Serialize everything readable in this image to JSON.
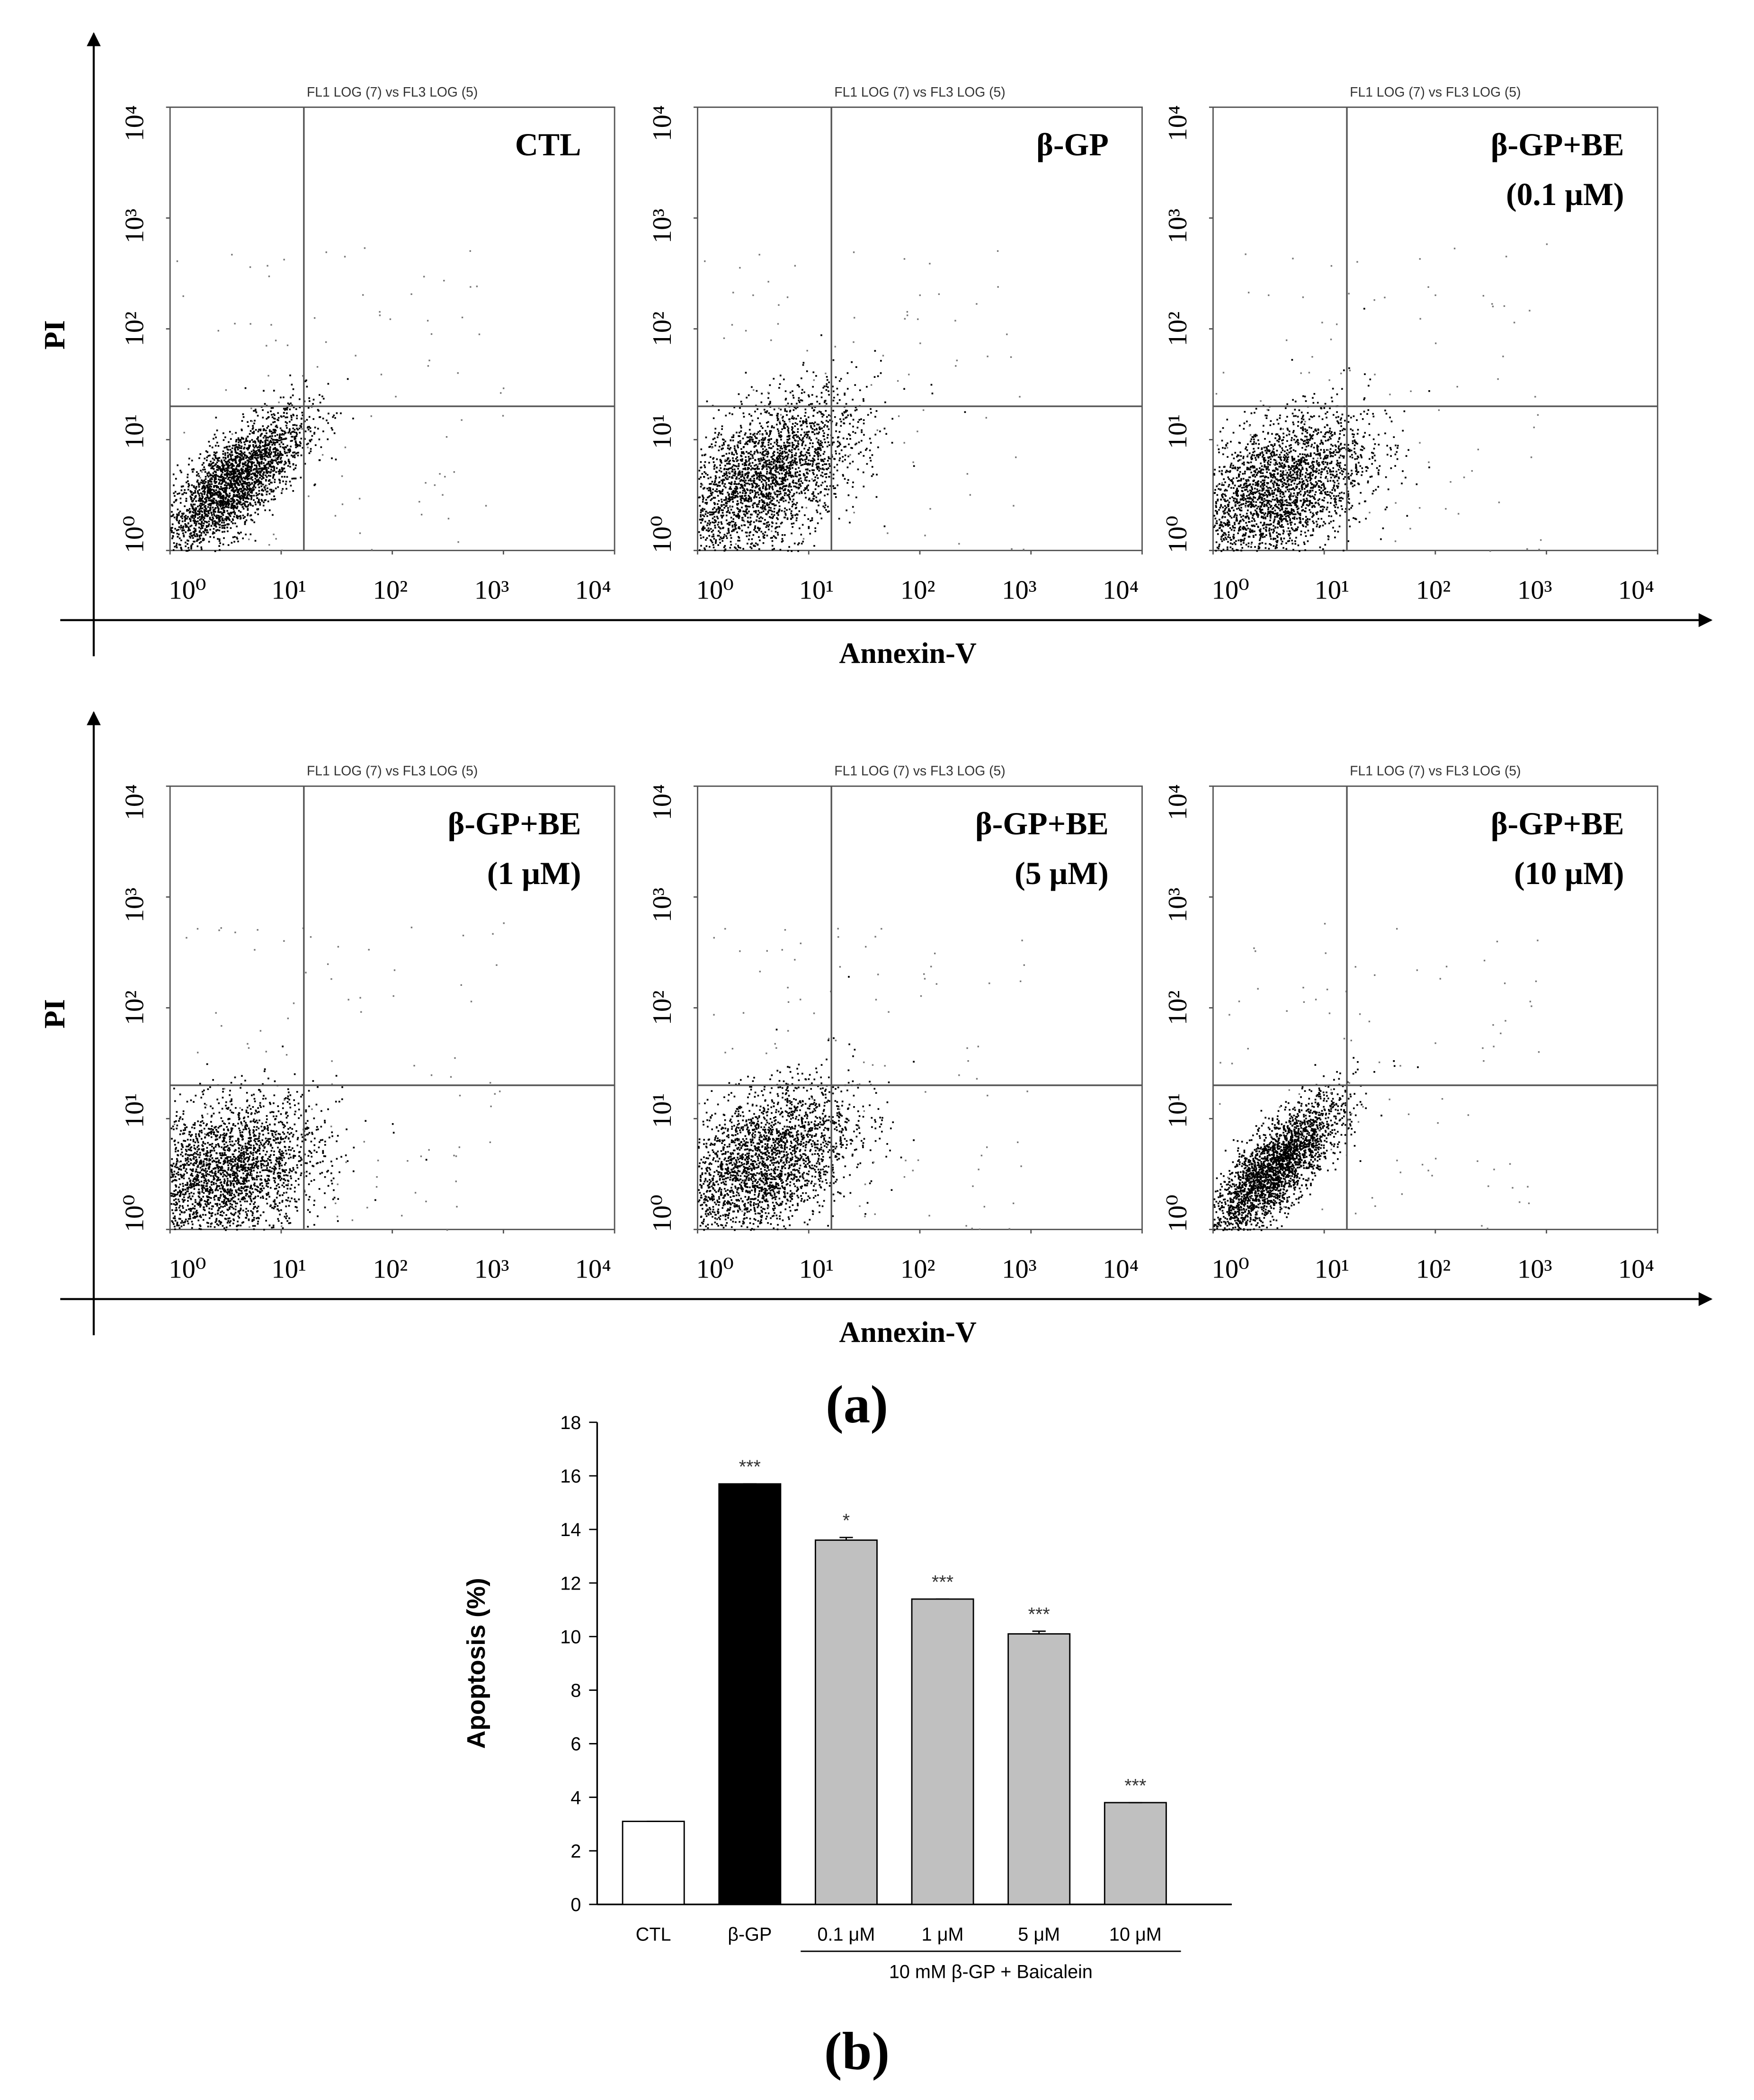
{
  "figure": {
    "panel_labels": [
      "(a)",
      "(b)"
    ],
    "rows": [
      {
        "y_label": "PI",
        "x_label": "Annexin-V"
      },
      {
        "y_label": "PI",
        "x_label": "Annexin-V"
      }
    ]
  },
  "chart_data": [
    {
      "type": "flow",
      "title": "FL1 LOG (7) vs FL3 LOG (5)",
      "label": [
        "CTL"
      ],
      "log_scale": true,
      "xlim": [
        1,
        10000
      ],
      "ylim": [
        1,
        10000
      ],
      "xticks": [
        {
          "value": 1,
          "label": "10⁰"
        },
        {
          "value": 10,
          "label": "10¹"
        },
        {
          "value": 100,
          "label": "10²"
        },
        {
          "value": 1000,
          "label": "10³"
        },
        {
          "value": 10000,
          "label": "10⁴"
        }
      ],
      "yticks": [
        {
          "value": 1,
          "label": "10⁰"
        },
        {
          "value": 10,
          "label": "10¹"
        },
        {
          "value": 100,
          "label": "10²"
        },
        {
          "value": 1000,
          "label": "10³"
        },
        {
          "value": 10000,
          "label": "10⁴"
        }
      ],
      "gate": {
        "x": 16,
        "y": 20
      }
    },
    {
      "type": "flow",
      "title": "FL1 LOG (7) vs FL3 LOG (5)",
      "label": [
        "β-GP"
      ],
      "log_scale": true,
      "xlim": [
        1,
        10000
      ],
      "ylim": [
        1,
        10000
      ],
      "xticks": [
        {
          "value": 1,
          "label": "10⁰"
        },
        {
          "value": 10,
          "label": "10¹"
        },
        {
          "value": 100,
          "label": "10²"
        },
        {
          "value": 1000,
          "label": "10³"
        },
        {
          "value": 10000,
          "label": "10⁴"
        }
      ],
      "yticks": [
        {
          "value": 1,
          "label": "10⁰"
        },
        {
          "value": 10,
          "label": "10¹"
        },
        {
          "value": 100,
          "label": "10²"
        },
        {
          "value": 1000,
          "label": "10³"
        },
        {
          "value": 10000,
          "label": "10⁴"
        }
      ],
      "gate": {
        "x": 16,
        "y": 20
      }
    },
    {
      "type": "flow",
      "title": "FL1 LOG (7) vs FL3 LOG (5)",
      "label": [
        "β-GP+BE",
        "(0.1 μM)"
      ],
      "log_scale": true,
      "xlim": [
        1,
        10000
      ],
      "ylim": [
        1,
        10000
      ],
      "xticks": [
        {
          "value": 1,
          "label": "10⁰"
        },
        {
          "value": 10,
          "label": "10¹"
        },
        {
          "value": 100,
          "label": "10²"
        },
        {
          "value": 1000,
          "label": "10³"
        },
        {
          "value": 10000,
          "label": "10⁴"
        }
      ],
      "yticks": [
        {
          "value": 1,
          "label": "10⁰"
        },
        {
          "value": 10,
          "label": "10¹"
        },
        {
          "value": 100,
          "label": "10²"
        },
        {
          "value": 1000,
          "label": "10³"
        },
        {
          "value": 10000,
          "label": "10⁴"
        }
      ],
      "gate": {
        "x": 16,
        "y": 20
      }
    },
    {
      "type": "flow",
      "title": "FL1 LOG (7) vs FL3 LOG (5)",
      "label": [
        "β-GP+BE",
        "(1 μM)"
      ],
      "log_scale": true,
      "xlim": [
        1,
        10000
      ],
      "ylim": [
        1,
        10000
      ],
      "xticks": [
        {
          "value": 1,
          "label": "10⁰"
        },
        {
          "value": 10,
          "label": "10¹"
        },
        {
          "value": 100,
          "label": "10²"
        },
        {
          "value": 1000,
          "label": "10³"
        },
        {
          "value": 10000,
          "label": "10⁴"
        }
      ],
      "yticks": [
        {
          "value": 1,
          "label": "10⁰"
        },
        {
          "value": 10,
          "label": "10¹"
        },
        {
          "value": 100,
          "label": "10²"
        },
        {
          "value": 1000,
          "label": "10³"
        },
        {
          "value": 10000,
          "label": "10⁴"
        }
      ],
      "gate": {
        "x": 16,
        "y": 20
      }
    },
    {
      "type": "flow",
      "title": "FL1 LOG (7) vs FL3 LOG (5)",
      "label": [
        "β-GP+BE",
        "(5 μM)"
      ],
      "log_scale": true,
      "xlim": [
        1,
        10000
      ],
      "ylim": [
        1,
        10000
      ],
      "xticks": [
        {
          "value": 1,
          "label": "10⁰"
        },
        {
          "value": 10,
          "label": "10¹"
        },
        {
          "value": 100,
          "label": "10²"
        },
        {
          "value": 1000,
          "label": "10³"
        },
        {
          "value": 10000,
          "label": "10⁴"
        }
      ],
      "yticks": [
        {
          "value": 1,
          "label": "10⁰"
        },
        {
          "value": 10,
          "label": "10¹"
        },
        {
          "value": 100,
          "label": "10²"
        },
        {
          "value": 1000,
          "label": "10³"
        },
        {
          "value": 10000,
          "label": "10⁴"
        }
      ],
      "gate": {
        "x": 16,
        "y": 20
      }
    },
    {
      "type": "flow",
      "title": "FL1 LOG (7) vs FL3 LOG (5)",
      "label": [
        "β-GP+BE",
        "(10 μM)"
      ],
      "log_scale": true,
      "xlim": [
        1,
        10000
      ],
      "ylim": [
        1,
        10000
      ],
      "xticks": [
        {
          "value": 1,
          "label": "10⁰"
        },
        {
          "value": 10,
          "label": "10¹"
        },
        {
          "value": 100,
          "label": "10²"
        },
        {
          "value": 1000,
          "label": "10³"
        },
        {
          "value": 10000,
          "label": "10⁴"
        }
      ],
      "yticks": [
        {
          "value": 1,
          "label": "10⁰"
        },
        {
          "value": 10,
          "label": "10¹"
        },
        {
          "value": 100,
          "label": "10²"
        },
        {
          "value": 1000,
          "label": "10³"
        },
        {
          "value": 10000,
          "label": "10⁴"
        }
      ],
      "gate": {
        "x": 16,
        "y": 20
      }
    },
    {
      "type": "bar",
      "y_label": "Apoptosis (%)",
      "categories": [
        "CTL",
        "β-GP",
        "0.1 μM",
        "1 μM",
        "5 μM",
        "10 μM"
      ],
      "values": [
        3.1,
        15.7,
        13.6,
        11.4,
        10.1,
        3.8
      ],
      "errors": [
        0,
        0,
        0.1,
        0,
        0.1,
        0
      ],
      "colors": [
        "#ffffff",
        "#000000",
        "#c0c0c0",
        "#c0c0c0",
        "#c0c0c0",
        "#c0c0c0"
      ],
      "significance": [
        null,
        "***",
        "*",
        "***",
        "***",
        "***"
      ],
      "group_label": "10 mM β-GP + Baicalein",
      "ylim": [
        0,
        18
      ],
      "yticks": [
        0,
        2,
        4,
        6,
        8,
        10,
        12,
        14,
        16,
        18
      ]
    }
  ]
}
